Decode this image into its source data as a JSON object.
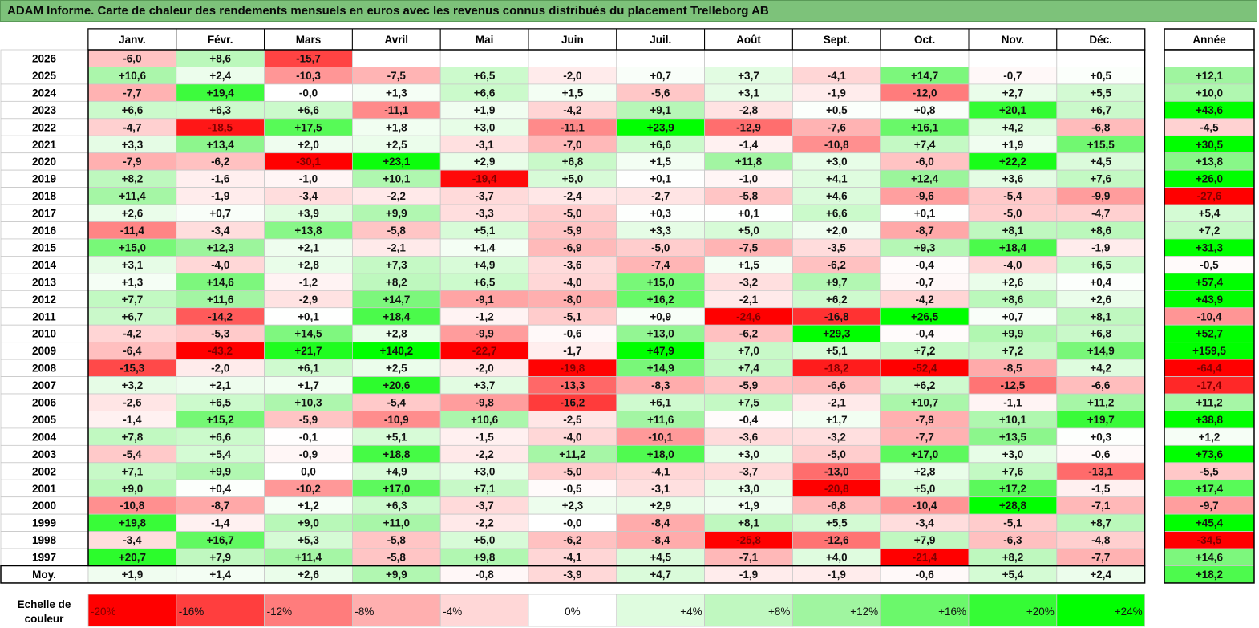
{
  "title": "ADAM Informe. Carte de chaleur des rendements mensuels en euros avec les revenus connus distribués du placement Trelleborg AB",
  "chart_data": {
    "type": "heatmap",
    "months": [
      "Janv.",
      "Févr.",
      "Mars",
      "Avril",
      "Mai",
      "Juin",
      "Juil.",
      "Août",
      "Sept.",
      "Oct.",
      "Nov.",
      "Déc."
    ],
    "year_header": "Année",
    "rows": [
      {
        "label": "2026",
        "values": [
          "-6,0",
          "+8,6",
          "-15,7",
          "",
          "",
          "",
          "",
          "",
          "",
          "",
          "",
          ""
        ],
        "annual": ""
      },
      {
        "label": "2025",
        "values": [
          "+10,6",
          "+2,4",
          "-10,3",
          "-7,5",
          "+6,5",
          "-2,0",
          "+0,7",
          "+3,7",
          "-4,1",
          "+14,7",
          "-0,7",
          "+0,5"
        ],
        "annual": "+12,1"
      },
      {
        "label": "2024",
        "values": [
          "-7,7",
          "+19,4",
          "-0,0",
          "+1,3",
          "+6,6",
          "+1,5",
          "-5,6",
          "+3,1",
          "-1,9",
          "-12,0",
          "+2,7",
          "+5,5"
        ],
        "annual": "+10,0"
      },
      {
        "label": "2023",
        "values": [
          "+6,6",
          "+6,3",
          "+6,6",
          "-11,1",
          "+1,9",
          "-4,2",
          "+9,1",
          "-2,8",
          "+0,5",
          "+0,8",
          "+20,1",
          "+6,7"
        ],
        "annual": "+43,6"
      },
      {
        "label": "2022",
        "values": [
          "-4,7",
          "-18,5",
          "+17,5",
          "+1,8",
          "+3,0",
          "-11,1",
          "+23,9",
          "-12,9",
          "-7,6",
          "+16,1",
          "+4,2",
          "-6,8"
        ],
        "annual": "-4,5"
      },
      {
        "label": "2021",
        "values": [
          "+3,3",
          "+13,4",
          "+2,0",
          "+2,5",
          "-3,1",
          "-7,0",
          "+6,6",
          "-1,4",
          "-10,8",
          "+7,4",
          "+1,9",
          "+15,5"
        ],
        "annual": "+30,5"
      },
      {
        "label": "2020",
        "values": [
          "-7,9",
          "-6,2",
          "-30,1",
          "+23,1",
          "+2,9",
          "+6,8",
          "+1,5",
          "+11,8",
          "+3,0",
          "-6,0",
          "+22,2",
          "+4,5"
        ],
        "annual": "+13,8"
      },
      {
        "label": "2019",
        "values": [
          "+8,2",
          "-1,6",
          "-1,0",
          "+10,1",
          "-19,4",
          "+5,0",
          "+0,1",
          "-1,0",
          "+4,1",
          "+12,4",
          "+3,6",
          "+7,6"
        ],
        "annual": "+26,0"
      },
      {
        "label": "2018",
        "values": [
          "+11,4",
          "-1,9",
          "-3,4",
          "-2,2",
          "-3,7",
          "-2,4",
          "-2,7",
          "-5,8",
          "+4,6",
          "-9,6",
          "-5,4",
          "-9,9"
        ],
        "annual": "-27,6"
      },
      {
        "label": "2017",
        "values": [
          "+2,6",
          "+0,7",
          "+3,9",
          "+9,9",
          "-3,3",
          "-5,0",
          "+0,3",
          "+0,1",
          "+6,6",
          "+0,1",
          "-5,0",
          "-4,7"
        ],
        "annual": "+5,4"
      },
      {
        "label": "2016",
        "values": [
          "-11,4",
          "-3,4",
          "+13,8",
          "-5,8",
          "+5,1",
          "-5,9",
          "+3,3",
          "+5,0",
          "+2,0",
          "-8,7",
          "+8,1",
          "+8,6"
        ],
        "annual": "+7,2"
      },
      {
        "label": "2015",
        "values": [
          "+15,0",
          "+12,3",
          "+2,1",
          "-2,1",
          "+1,4",
          "-6,9",
          "-5,0",
          "-7,5",
          "-3,5",
          "+9,3",
          "+18,4",
          "-1,9"
        ],
        "annual": "+31,3"
      },
      {
        "label": "2014",
        "values": [
          "+3,1",
          "-4,0",
          "+2,8",
          "+7,3",
          "+4,9",
          "-3,6",
          "-7,4",
          "+1,5",
          "-6,2",
          "-0,4",
          "-4,0",
          "+6,5"
        ],
        "annual": "-0,5"
      },
      {
        "label": "2013",
        "values": [
          "+1,3",
          "+14,6",
          "-1,2",
          "+8,2",
          "+6,5",
          "-4,0",
          "+15,0",
          "-3,2",
          "+9,7",
          "-0,7",
          "+2,6",
          "+0,4"
        ],
        "annual": "+57,4"
      },
      {
        "label": "2012",
        "values": [
          "+7,7",
          "+11,6",
          "-2,9",
          "+14,7",
          "-9,1",
          "-8,0",
          "+16,2",
          "-2,1",
          "+6,2",
          "-4,2",
          "+8,6",
          "+2,6"
        ],
        "annual": "+43,9"
      },
      {
        "label": "2011",
        "values": [
          "+6,7",
          "-14,2",
          "+0,1",
          "+18,4",
          "-1,2",
          "-5,1",
          "+0,9",
          "-24,6",
          "-16,8",
          "+26,5",
          "+0,7",
          "+8,1"
        ],
        "annual": "-10,4"
      },
      {
        "label": "2010",
        "values": [
          "-4,2",
          "-5,3",
          "+14,5",
          "+2,8",
          "-9,9",
          "-0,6",
          "+13,0",
          "-6,2",
          "+29,3",
          "-0,4",
          "+9,9",
          "+6,8"
        ],
        "annual": "+52,7"
      },
      {
        "label": "2009",
        "values": [
          "-6,4",
          "-43,2",
          "+21,7",
          "+140,2",
          "-22,7",
          "-1,7",
          "+47,9",
          "+7,0",
          "+5,1",
          "+7,2",
          "+7,2",
          "+14,9"
        ],
        "annual": "+159,5"
      },
      {
        "label": "2008",
        "values": [
          "-15,3",
          "-2,0",
          "+6,1",
          "+2,5",
          "-2,0",
          "-19,8",
          "+14,9",
          "+7,4",
          "-18,2",
          "-52,4",
          "-8,5",
          "+4,2"
        ],
        "annual": "-64,4"
      },
      {
        "label": "2007",
        "values": [
          "+3,2",
          "+2,1",
          "+1,7",
          "+20,6",
          "+3,7",
          "-13,3",
          "-8,3",
          "-5,9",
          "-6,6",
          "+6,2",
          "-12,5",
          "-6,6"
        ],
        "annual": "-17,4"
      },
      {
        "label": "2006",
        "values": [
          "-2,6",
          "+6,5",
          "+10,3",
          "-5,4",
          "-9,8",
          "-16,2",
          "+6,1",
          "+7,5",
          "-2,1",
          "+10,7",
          "-1,1",
          "+11,2"
        ],
        "annual": "+11,2"
      },
      {
        "label": "2005",
        "values": [
          "-1,4",
          "+15,2",
          "-5,9",
          "-10,9",
          "+10,6",
          "-2,5",
          "+11,6",
          "-0,4",
          "+1,7",
          "-7,9",
          "+10,1",
          "+19,7"
        ],
        "annual": "+38,8"
      },
      {
        "label": "2004",
        "values": [
          "+7,8",
          "+6,6",
          "-0,1",
          "+5,1",
          "-1,5",
          "-4,0",
          "-10,1",
          "-3,6",
          "-3,2",
          "-7,7",
          "+13,5",
          "+0,3"
        ],
        "annual": "+1,2"
      },
      {
        "label": "2003",
        "values": [
          "-5,4",
          "+5,4",
          "-0,9",
          "+18,8",
          "-2,2",
          "+11,2",
          "+18,0",
          "+3,0",
          "-5,0",
          "+17,0",
          "+3,0",
          "-0,6"
        ],
        "annual": "+73,6"
      },
      {
        "label": "2002",
        "values": [
          "+7,1",
          "+9,9",
          "0,0",
          "+4,9",
          "+3,0",
          "-5,0",
          "-4,1",
          "-3,7",
          "-13,0",
          "+2,8",
          "+7,6",
          "-13,1"
        ],
        "annual": "-5,5"
      },
      {
        "label": "2001",
        "values": [
          "+9,0",
          "+0,4",
          "-10,2",
          "+17,0",
          "+7,1",
          "-0,5",
          "-3,1",
          "+3,0",
          "-20,8",
          "+5,0",
          "+17,2",
          "-1,5"
        ],
        "annual": "+17,4"
      },
      {
        "label": "2000",
        "values": [
          "-10,8",
          "-8,7",
          "+1,2",
          "+6,3",
          "-3,7",
          "+2,3",
          "+2,9",
          "+1,9",
          "-6,8",
          "-10,4",
          "+28,8",
          "-7,1"
        ],
        "annual": "-9,7"
      },
      {
        "label": "1999",
        "values": [
          "+19,8",
          "-1,4",
          "+9,0",
          "+11,0",
          "-2,2",
          "-0,0",
          "-8,4",
          "+8,1",
          "+5,5",
          "-3,4",
          "-5,1",
          "+8,7"
        ],
        "annual": "+45,4"
      },
      {
        "label": "1998",
        "values": [
          "-3,4",
          "+16,7",
          "+5,3",
          "-5,8",
          "+5,0",
          "-6,2",
          "-8,4",
          "-25,8",
          "-12,6",
          "+7,9",
          "-6,3",
          "-4,8"
        ],
        "annual": "-34,5"
      },
      {
        "label": "1997",
        "values": [
          "+20,7",
          "+7,9",
          "+11,4",
          "-5,8",
          "+9,8",
          "-4,1",
          "+4,5",
          "-7,1",
          "+4,0",
          "-21,4",
          "+8,2",
          "-7,7"
        ],
        "annual": "+14,6"
      }
    ],
    "average_row": {
      "label": "Moy.",
      "values": [
        "+1,9",
        "+1,4",
        "+2,6",
        "+9,9",
        "-0,8",
        "-3,9",
        "+4,7",
        "-1,9",
        "-1,9",
        "-0,6",
        "+5,4",
        "+2,4"
      ],
      "annual": "+18,2"
    },
    "scale": {
      "label_line1": "Echelle de",
      "label_line2": "couleur",
      "items": [
        "-20%",
        "-16%",
        "-12%",
        "-8%",
        "-4%",
        "0%",
        "+4%",
        "+8%",
        "+12%",
        "+16%",
        "+20%",
        "+24%"
      ]
    },
    "colors": {
      "title_bar": "#7dc27a",
      "neg_strong": "#ff0000",
      "neutral": "#ffffff",
      "pos_strong": "#00ff00"
    }
  }
}
